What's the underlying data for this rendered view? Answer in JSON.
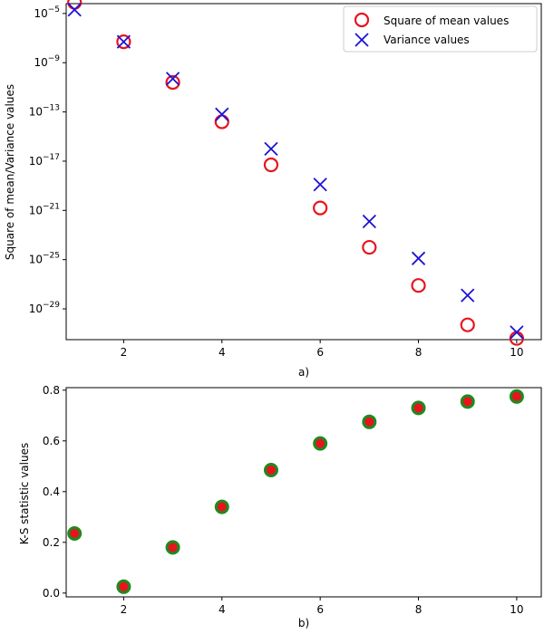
{
  "chart_data": [
    {
      "type": "scatter",
      "yscale": "log",
      "xlabel": "a)",
      "ylabel": "Square of mean/Variance values",
      "xlim": [
        0.83,
        10.5
      ],
      "ylim_exponent": [
        -31.5,
        -4.2
      ],
      "x_ticks": [
        2,
        4,
        6,
        8,
        10
      ],
      "y_ticks_exponent": [
        -5,
        -9,
        -13,
        -17,
        -21,
        -25,
        -29
      ],
      "y_tick_base": "10",
      "legend_position": "top-right",
      "series": [
        {
          "name": "Square of mean values",
          "marker": "circle-open",
          "color": "#e8131e",
          "x": [
            1,
            2,
            3,
            4,
            5,
            6,
            7,
            8,
            9,
            10
          ],
          "log10_values": [
            -4.1,
            -7.3,
            -10.6,
            -13.8,
            -17.3,
            -20.8,
            -24.0,
            -27.1,
            -30.3,
            -31.4
          ]
        },
        {
          "name": "Variance values",
          "marker": "x",
          "color": "#1c12d6",
          "x": [
            1,
            2,
            3,
            4,
            5,
            6,
            7,
            8,
            9,
            10
          ],
          "log10_values": [
            -4.7,
            -7.3,
            -10.3,
            -13.2,
            -16.0,
            -18.9,
            -21.9,
            -24.9,
            -27.9,
            -30.9
          ]
        }
      ]
    },
    {
      "type": "scatter",
      "xlabel": "b)",
      "ylabel": "K-S statistic values",
      "xlim": [
        0.83,
        10.5
      ],
      "ylim": [
        -0.015,
        0.81
      ],
      "x_ticks": [
        2,
        4,
        6,
        8,
        10
      ],
      "y_ticks": [
        0.0,
        0.2,
        0.4,
        0.6,
        0.8
      ],
      "marker_face": "#e8131e",
      "marker_edge": "#1f8a1f",
      "x": [
        1,
        2,
        3,
        4,
        5,
        6,
        7,
        8,
        9,
        10
      ],
      "values": [
        0.235,
        0.025,
        0.18,
        0.34,
        0.485,
        0.59,
        0.675,
        0.73,
        0.755,
        0.775
      ]
    }
  ]
}
